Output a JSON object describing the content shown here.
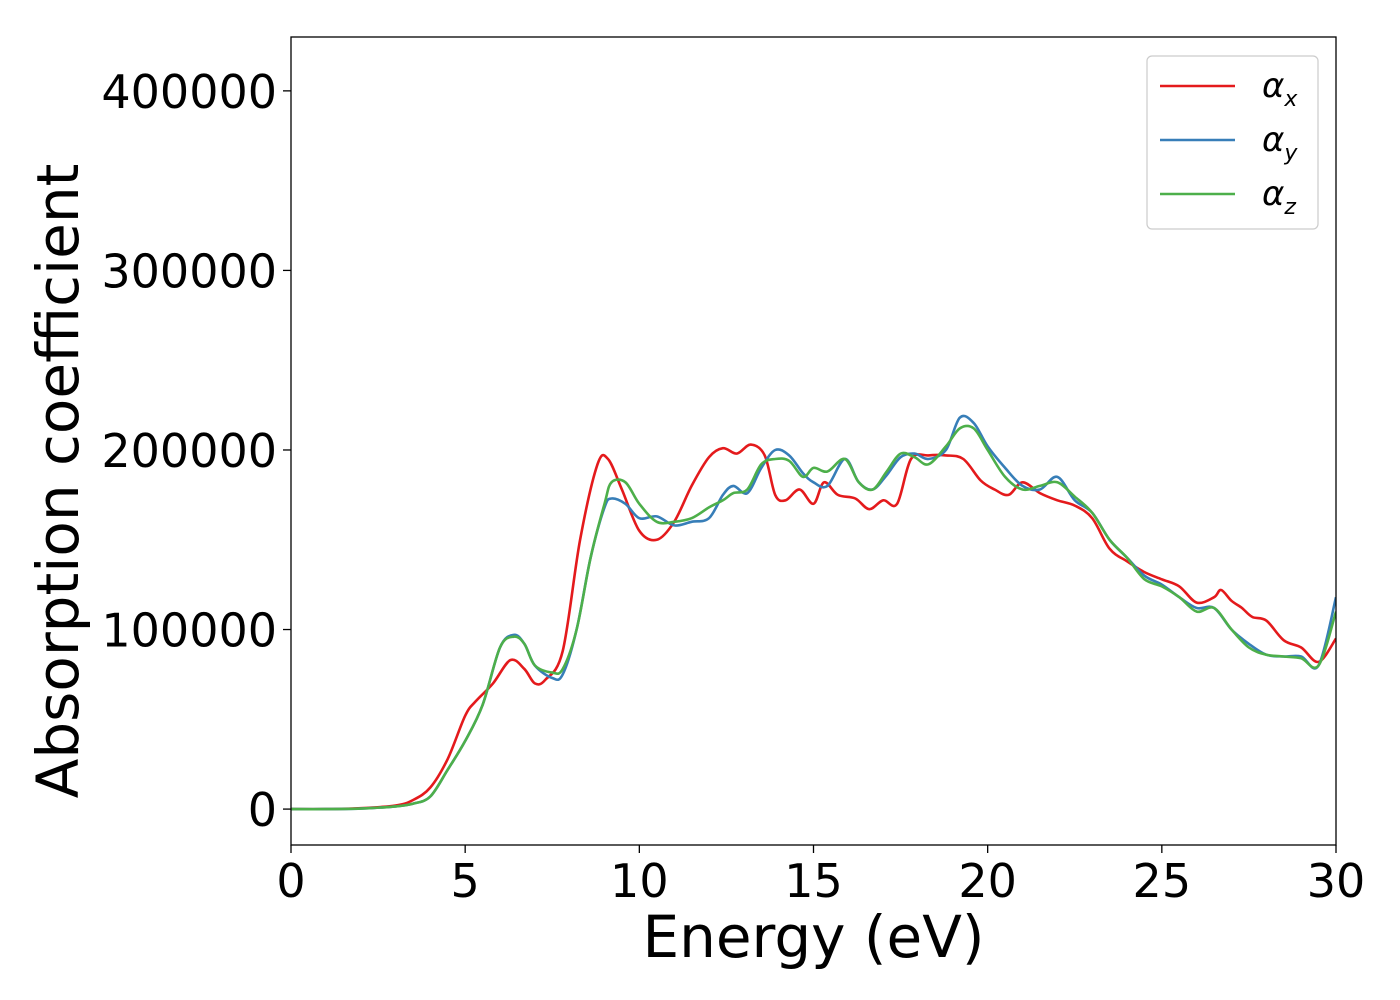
{
  "chart_data": {
    "type": "line",
    "title": "",
    "xlabel": "Energy (eV)",
    "ylabel": "Absorption coefficient",
    "xlim": [
      0,
      30
    ],
    "ylim": [
      -20000,
      430000
    ],
    "xticks": [
      0,
      5,
      10,
      15,
      20,
      25,
      30
    ],
    "xtick_labels": [
      "0",
      "5",
      "10",
      "15",
      "20",
      "25",
      "30"
    ],
    "yticks": [
      0,
      100000,
      200000,
      300000,
      400000
    ],
    "ytick_labels": [
      "0",
      "100000",
      "200000",
      "300000",
      "400000"
    ],
    "grid": false,
    "legend_position": "top-right",
    "series": [
      {
        "name": "αx",
        "legend_base": "α",
        "legend_sub": "x",
        "color": "#e41a1c",
        "x": [
          0,
          1,
          2,
          3,
          3.5,
          4,
          4.5,
          5,
          5.3,
          5.8,
          6.3,
          6.7,
          7,
          7.3,
          7.8,
          8.3,
          8.8,
          9.1,
          9.5,
          10,
          10.5,
          11,
          11.5,
          12,
          12.4,
          12.8,
          13.2,
          13.6,
          13.9,
          14.2,
          14.6,
          15,
          15.3,
          15.7,
          16.2,
          16.6,
          17,
          17.4,
          17.8,
          18.3,
          18.8,
          19.3,
          19.8,
          20.2,
          20.6,
          21,
          21.5,
          22,
          22.5,
          23,
          23.5,
          24,
          24.5,
          25,
          25.5,
          26,
          26.5,
          26.7,
          27,
          27.3,
          27.6,
          28,
          28.5,
          29,
          29.5,
          30
        ],
        "y": [
          0,
          0,
          500,
          2000,
          5000,
          12000,
          28000,
          52000,
          60000,
          70000,
          83000,
          78000,
          70000,
          72000,
          88000,
          150000,
          192000,
          195000,
          178000,
          155000,
          150000,
          160000,
          180000,
          196000,
          201000,
          198000,
          203000,
          197000,
          175000,
          172000,
          178000,
          170000,
          182000,
          175000,
          173000,
          167000,
          172000,
          170000,
          195000,
          197000,
          197000,
          195000,
          183000,
          178000,
          175000,
          182000,
          176000,
          172000,
          169000,
          162000,
          145000,
          138000,
          132000,
          128000,
          124000,
          115000,
          118000,
          122000,
          116000,
          112000,
          107000,
          105000,
          94000,
          90000,
          82000,
          95000
        ]
      },
      {
        "name": "αy",
        "legend_base": "α",
        "legend_sub": "y",
        "color": "#377eb8",
        "x": [
          0,
          1,
          2,
          3,
          3.5,
          4,
          4.5,
          5,
          5.5,
          6,
          6.4,
          6.7,
          7,
          7.5,
          7.8,
          8.2,
          8.6,
          9,
          9.2,
          9.6,
          10,
          10.5,
          11,
          11.5,
          12,
          12.4,
          12.7,
          13.1,
          13.5,
          13.9,
          14.3,
          14.7,
          15,
          15.4,
          15.9,
          16.3,
          16.7,
          17.1,
          17.5,
          17.9,
          18.3,
          18.8,
          19.2,
          19.6,
          20,
          20.5,
          21,
          21.5,
          22,
          22.5,
          23,
          23.5,
          24,
          24.5,
          25,
          25.5,
          26,
          26.5,
          27,
          27.5,
          28,
          28.5,
          29,
          29.5,
          30
        ],
        "y": [
          0,
          0,
          300,
          1500,
          3000,
          7000,
          22000,
          38000,
          58000,
          90000,
          97000,
          92000,
          80000,
          73000,
          75000,
          100000,
          140000,
          168000,
          173000,
          170000,
          162000,
          163000,
          158000,
          160000,
          162000,
          175000,
          180000,
          176000,
          190000,
          200000,
          197000,
          187000,
          182000,
          180000,
          195000,
          182000,
          178000,
          186000,
          196000,
          198000,
          195000,
          200000,
          218000,
          215000,
          202000,
          190000,
          180000,
          178000,
          185000,
          172000,
          165000,
          150000,
          140000,
          130000,
          125000,
          118000,
          112000,
          112000,
          100000,
          92000,
          86000,
          85000,
          85000,
          80000,
          118000
        ]
      },
      {
        "name": "αz",
        "legend_base": "α",
        "legend_sub": "z",
        "color": "#4daf4a",
        "x": [
          0,
          1,
          2,
          3,
          3.5,
          4,
          4.5,
          5,
          5.5,
          6,
          6.4,
          6.7,
          7,
          7.5,
          7.8,
          8.2,
          8.6,
          9,
          9.2,
          9.6,
          10,
          10.5,
          11,
          11.5,
          12,
          12.4,
          12.7,
          13.1,
          13.5,
          13.9,
          14.3,
          14.7,
          15,
          15.4,
          15.9,
          16.3,
          16.7,
          17.1,
          17.5,
          17.9,
          18.3,
          18.8,
          19.2,
          19.6,
          20,
          20.5,
          21,
          21.5,
          22,
          22.5,
          23,
          23.5,
          24,
          24.5,
          25,
          25.5,
          26,
          26.5,
          27,
          27.5,
          28,
          28.5,
          29,
          29.5,
          30
        ],
        "y": [
          0,
          0,
          300,
          1500,
          3000,
          7000,
          22000,
          38000,
          58000,
          90000,
          96000,
          92000,
          80000,
          76000,
          78000,
          100000,
          140000,
          170000,
          182000,
          182000,
          170000,
          160000,
          160000,
          162000,
          168000,
          172000,
          176000,
          178000,
          192000,
          195000,
          194000,
          185000,
          190000,
          188000,
          195000,
          182000,
          178000,
          188000,
          198000,
          196000,
          192000,
          202000,
          212000,
          212000,
          200000,
          185000,
          178000,
          180000,
          182000,
          174000,
          165000,
          150000,
          140000,
          128000,
          124000,
          118000,
          110000,
          112000,
          100000,
          90000,
          86000,
          85000,
          84000,
          80000,
          110000
        ]
      }
    ]
  }
}
